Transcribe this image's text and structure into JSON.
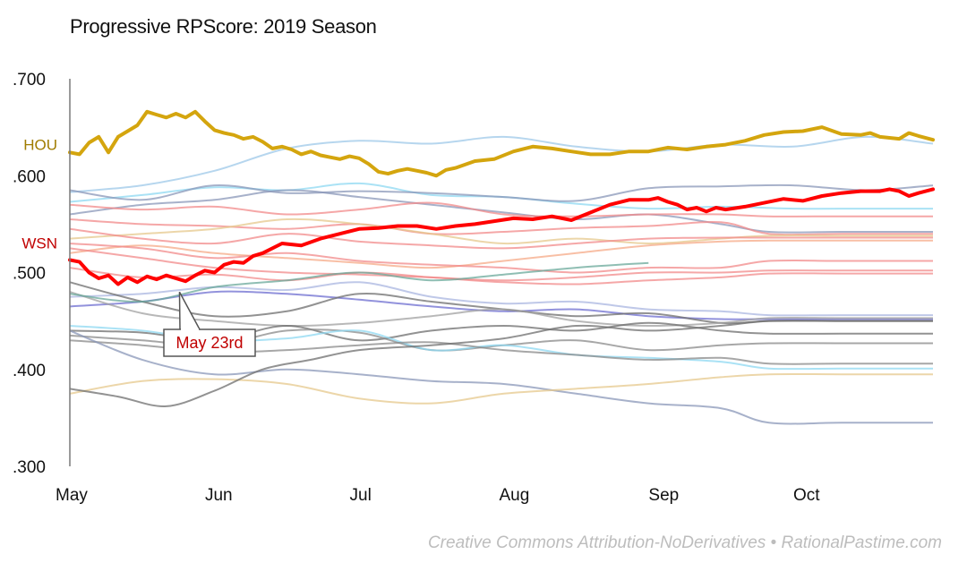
{
  "title": "Progressive RPScore: 2019 Season",
  "credit": "Creative Commons Attribution-NoDerivatives • RationalPastime.com",
  "chart_data": {
    "type": "line",
    "title": "Progressive RPScore: 2019 Season",
    "xlabel": "",
    "ylabel": "",
    "x_unit": "days since May 1",
    "xlim": [
      0,
      179
    ],
    "ylim": [
      0.3,
      0.7
    ],
    "yticks": [
      {
        "value": 0.7,
        "label": ".700"
      },
      {
        "value": 0.6,
        "label": ".600"
      },
      {
        "value": 0.5,
        "label": ".500"
      },
      {
        "value": 0.4,
        "label": ".400"
      },
      {
        "value": 0.3,
        "label": ".300"
      }
    ],
    "xticks": [
      {
        "value": 0,
        "label": "May"
      },
      {
        "value": 31,
        "label": "Jun"
      },
      {
        "value": 61,
        "label": "Jul"
      },
      {
        "value": 92,
        "label": "Aug"
      },
      {
        "value": 123,
        "label": "Sep"
      },
      {
        "value": 153,
        "label": "Oct"
      }
    ],
    "grid": false,
    "legend": "none",
    "annotation": {
      "label": "May 23rd",
      "x": 22,
      "y": 0.491,
      "color": "#c00000"
    },
    "highlight_series": [
      {
        "name": "HOU",
        "label": "HOU",
        "color": "#d4a50e",
        "label_color": "#a07c00",
        "x": [
          0,
          2,
          4,
          6,
          8,
          10,
          12,
          14,
          16,
          18,
          20,
          22,
          24,
          26,
          28,
          30,
          32,
          34,
          36,
          38,
          40,
          42,
          44,
          46,
          48,
          50,
          52,
          54,
          56,
          58,
          60,
          62,
          64,
          66,
          68,
          70,
          72,
          74,
          76,
          78,
          80,
          84,
          88,
          92,
          96,
          100,
          104,
          108,
          112,
          116,
          120,
          124,
          128,
          132,
          136,
          140,
          144,
          148,
          152,
          156,
          160,
          164,
          166,
          168,
          170,
          172,
          174,
          176,
          179
        ],
        "y": [
          0.624,
          0.622,
          0.634,
          0.64,
          0.624,
          0.64,
          0.646,
          0.652,
          0.666,
          0.663,
          0.66,
          0.664,
          0.66,
          0.666,
          0.656,
          0.647,
          0.644,
          0.642,
          0.638,
          0.64,
          0.635,
          0.628,
          0.63,
          0.627,
          0.622,
          0.625,
          0.621,
          0.619,
          0.617,
          0.62,
          0.618,
          0.612,
          0.604,
          0.602,
          0.605,
          0.607,
          0.605,
          0.603,
          0.6,
          0.606,
          0.608,
          0.615,
          0.617,
          0.625,
          0.63,
          0.628,
          0.625,
          0.622,
          0.622,
          0.625,
          0.625,
          0.629,
          0.627,
          0.63,
          0.632,
          0.636,
          0.642,
          0.645,
          0.646,
          0.65,
          0.643,
          0.642,
          0.644,
          0.64,
          0.639,
          0.638,
          0.644,
          0.641,
          0.637
        ]
      },
      {
        "name": "WSN",
        "label": "WSN",
        "color": "#ff0000",
        "label_color": "#c00000",
        "x": [
          0,
          2,
          4,
          6,
          8,
          10,
          12,
          14,
          16,
          18,
          20,
          22,
          24,
          26,
          28,
          30,
          32,
          34,
          36,
          38,
          40,
          44,
          48,
          52,
          56,
          60,
          64,
          68,
          72,
          76,
          80,
          84,
          88,
          92,
          96,
          100,
          104,
          108,
          112,
          116,
          120,
          122,
          124,
          126,
          128,
          130,
          132,
          134,
          136,
          140,
          144,
          148,
          152,
          156,
          160,
          164,
          168,
          170,
          172,
          174,
          176,
          179
        ],
        "y": [
          0.513,
          0.511,
          0.5,
          0.494,
          0.497,
          0.488,
          0.495,
          0.49,
          0.496,
          0.493,
          0.497,
          0.494,
          0.491,
          0.497,
          0.502,
          0.5,
          0.508,
          0.511,
          0.51,
          0.517,
          0.52,
          0.53,
          0.528,
          0.535,
          0.54,
          0.545,
          0.546,
          0.548,
          0.548,
          0.545,
          0.548,
          0.55,
          0.553,
          0.556,
          0.555,
          0.558,
          0.554,
          0.562,
          0.57,
          0.575,
          0.575,
          0.577,
          0.573,
          0.57,
          0.565,
          0.567,
          0.563,
          0.567,
          0.565,
          0.568,
          0.572,
          0.576,
          0.574,
          0.579,
          0.582,
          0.584,
          0.584,
          0.586,
          0.584,
          0.579,
          0.582,
          0.586
        ]
      }
    ],
    "background_series": [
      {
        "color": "#9dc8e8",
        "x": [
          0,
          15,
          30,
          45,
          60,
          75,
          90,
          105,
          120,
          135,
          150,
          165,
          179
        ],
        "y": [
          0.583,
          0.59,
          0.605,
          0.628,
          0.636,
          0.633,
          0.64,
          0.63,
          0.625,
          0.632,
          0.63,
          0.64,
          0.633
        ]
      },
      {
        "color": "#8ed8f2",
        "x": [
          0,
          15,
          30,
          45,
          60,
          75,
          90,
          105,
          120,
          135,
          150,
          165,
          179
        ],
        "y": [
          0.573,
          0.58,
          0.588,
          0.585,
          0.592,
          0.58,
          0.578,
          0.571,
          0.566,
          0.568,
          0.566,
          0.566,
          0.566
        ]
      },
      {
        "color": "#8a97b8",
        "x": [
          0,
          15,
          30,
          45,
          60,
          75,
          90,
          105,
          120,
          135,
          150,
          165,
          179
        ],
        "y": [
          0.585,
          0.575,
          0.59,
          0.582,
          0.584,
          0.582,
          0.578,
          0.574,
          0.587,
          0.589,
          0.59,
          0.585,
          0.59
        ]
      },
      {
        "color": "#8a97b8",
        "x": [
          0,
          15,
          30,
          45,
          60,
          75,
          90,
          105,
          120,
          135,
          145,
          160,
          179
        ],
        "y": [
          0.56,
          0.57,
          0.575,
          0.585,
          0.578,
          0.57,
          0.562,
          0.555,
          0.56,
          0.55,
          0.542,
          0.542,
          0.542
        ]
      },
      {
        "color": "#f28a8a",
        "x": [
          0,
          15,
          30,
          45,
          60,
          75,
          90,
          105,
          120,
          135,
          145,
          160,
          179
        ],
        "y": [
          0.57,
          0.565,
          0.568,
          0.56,
          0.565,
          0.572,
          0.56,
          0.558,
          0.56,
          0.56,
          0.558,
          0.558,
          0.558
        ]
      },
      {
        "color": "#f28a8a",
        "x": [
          0,
          15,
          30,
          45,
          60,
          75,
          90,
          105,
          120,
          135,
          145,
          160,
          179
        ],
        "y": [
          0.555,
          0.55,
          0.548,
          0.545,
          0.55,
          0.54,
          0.542,
          0.546,
          0.548,
          0.552,
          0.54,
          0.54,
          0.54
        ]
      },
      {
        "color": "#e6c88c",
        "x": [
          0,
          15,
          30,
          45,
          60,
          75,
          90,
          105,
          120,
          135,
          145,
          160,
          179
        ],
        "y": [
          0.535,
          0.54,
          0.545,
          0.555,
          0.55,
          0.54,
          0.53,
          0.535,
          0.53,
          0.535,
          0.538,
          0.538,
          0.538
        ]
      },
      {
        "color": "#f28a8a",
        "x": [
          0,
          15,
          30,
          45,
          60,
          75,
          90,
          105,
          120,
          135,
          145,
          160,
          179
        ],
        "y": [
          0.545,
          0.535,
          0.53,
          0.54,
          0.532,
          0.528,
          0.525,
          0.53,
          0.535,
          0.536,
          0.536,
          0.536,
          0.536
        ]
      },
      {
        "color": "#f5a987",
        "x": [
          0,
          15,
          30,
          45,
          60,
          75,
          90,
          105,
          120,
          135,
          145,
          160,
          179
        ],
        "y": [
          0.52,
          0.528,
          0.52,
          0.515,
          0.51,
          0.505,
          0.512,
          0.52,
          0.528,
          0.532,
          0.533,
          0.533,
          0.533
        ]
      },
      {
        "color": "#f28a8a",
        "x": [
          0,
          15,
          30,
          45,
          60,
          75,
          90,
          105,
          120,
          135,
          145,
          160,
          179
        ],
        "y": [
          0.53,
          0.525,
          0.515,
          0.52,
          0.512,
          0.508,
          0.505,
          0.5,
          0.505,
          0.505,
          0.512,
          0.512,
          0.512
        ]
      },
      {
        "color": "#f28a8a",
        "x": [
          0,
          15,
          30,
          45,
          60,
          75,
          90,
          105,
          120,
          135,
          145,
          160,
          179
        ],
        "y": [
          0.525,
          0.515,
          0.505,
          0.5,
          0.498,
          0.495,
          0.492,
          0.495,
          0.5,
          0.5,
          0.502,
          0.502,
          0.502
        ]
      },
      {
        "color": "#f28a8a",
        "x": [
          0,
          15,
          30,
          45,
          60,
          75,
          90,
          105,
          120,
          135,
          145,
          160,
          179
        ],
        "y": [
          0.505,
          0.495,
          0.498,
          0.492,
          0.5,
          0.495,
          0.49,
          0.488,
          0.492,
          0.495,
          0.499,
          0.499,
          0.499
        ]
      },
      {
        "color": "#a9b6e0",
        "x": [
          0,
          15,
          30,
          45,
          60,
          75,
          90,
          105,
          120,
          135,
          145,
          160,
          179
        ],
        "y": [
          0.475,
          0.478,
          0.485,
          0.482,
          0.49,
          0.475,
          0.468,
          0.47,
          0.462,
          0.46,
          0.456,
          0.456,
          0.456
        ]
      },
      {
        "color": "#6e6ed0",
        "x": [
          0,
          15,
          30,
          45,
          60,
          75,
          90,
          105,
          120,
          135,
          145,
          160,
          179
        ],
        "y": [
          0.465,
          0.47,
          0.48,
          0.478,
          0.472,
          0.465,
          0.46,
          0.462,
          0.455,
          0.452,
          0.452,
          0.452,
          0.452
        ]
      },
      {
        "color": "#6e6e6e",
        "x": [
          0,
          15,
          30,
          45,
          60,
          75,
          90,
          105,
          120,
          135,
          145,
          160,
          179
        ],
        "y": [
          0.49,
          0.47,
          0.455,
          0.46,
          0.478,
          0.47,
          0.462,
          0.455,
          0.458,
          0.448,
          0.45,
          0.45,
          0.45
        ]
      },
      {
        "color": "#a0a0a0",
        "x": [
          0,
          15,
          30,
          45,
          60,
          75,
          90,
          105,
          120,
          135,
          145,
          160,
          179
        ],
        "y": [
          0.48,
          0.458,
          0.45,
          0.445,
          0.448,
          0.455,
          0.462,
          0.45,
          0.445,
          0.448,
          0.453,
          0.453,
          0.453
        ]
      },
      {
        "color": "#6e6e6e",
        "x": [
          0,
          15,
          30,
          45,
          60,
          75,
          90,
          105,
          120,
          135,
          145,
          160,
          179
        ],
        "y": [
          0.44,
          0.438,
          0.43,
          0.445,
          0.43,
          0.44,
          0.445,
          0.44,
          0.448,
          0.44,
          0.437,
          0.437,
          0.437
        ]
      },
      {
        "color": "#8a8a8a",
        "x": [
          0,
          15,
          30,
          45,
          60,
          75,
          90,
          105,
          120,
          135,
          145,
          160,
          179
        ],
        "y": [
          0.435,
          0.43,
          0.425,
          0.44,
          0.438,
          0.42,
          0.425,
          0.43,
          0.42,
          0.425,
          0.427,
          0.427,
          0.427
        ]
      },
      {
        "color": "#8ed8f2",
        "x": [
          0,
          15,
          30,
          45,
          60,
          75,
          90,
          105,
          120,
          135,
          145,
          160,
          179
        ],
        "y": [
          0.445,
          0.44,
          0.43,
          0.432,
          0.44,
          0.42,
          0.425,
          0.415,
          0.412,
          0.408,
          0.401,
          0.401,
          0.401
        ]
      },
      {
        "color": "#8a8a8a",
        "x": [
          0,
          15,
          30,
          45,
          60,
          75,
          90,
          105,
          120,
          135,
          145,
          160,
          179
        ],
        "y": [
          0.43,
          0.425,
          0.418,
          0.42,
          0.425,
          0.428,
          0.42,
          0.415,
          0.41,
          0.412,
          0.406,
          0.406,
          0.406
        ]
      },
      {
        "color": "#8a97b8",
        "x": [
          0,
          15,
          30,
          45,
          60,
          75,
          90,
          105,
          120,
          135,
          145,
          160,
          179
        ],
        "y": [
          0.44,
          0.41,
          0.395,
          0.4,
          0.395,
          0.388,
          0.385,
          0.375,
          0.365,
          0.36,
          0.345,
          0.345,
          0.345
        ]
      },
      {
        "color": "#e6c88c",
        "x": [
          0,
          15,
          30,
          45,
          60,
          75,
          90,
          105,
          120,
          135,
          145,
          160,
          179
        ],
        "y": [
          0.375,
          0.388,
          0.39,
          0.385,
          0.37,
          0.365,
          0.375,
          0.38,
          0.385,
          0.392,
          0.395,
          0.395,
          0.395
        ]
      },
      {
        "color": "#6e6e6e",
        "x": [
          0,
          10,
          20,
          30,
          40,
          50,
          60,
          75,
          90,
          105,
          120,
          135,
          145,
          160,
          179
        ],
        "y": [
          0.38,
          0.372,
          0.362,
          0.378,
          0.4,
          0.41,
          0.42,
          0.425,
          0.432,
          0.445,
          0.44,
          0.445,
          0.45,
          0.45,
          0.45
        ]
      },
      {
        "color": "#6aa89a",
        "x": [
          0,
          15,
          30,
          45,
          60,
          75,
          90,
          105,
          120
        ],
        "y": [
          0.478,
          0.47,
          0.485,
          0.492,
          0.5,
          0.492,
          0.498,
          0.505,
          0.51
        ]
      }
    ]
  }
}
